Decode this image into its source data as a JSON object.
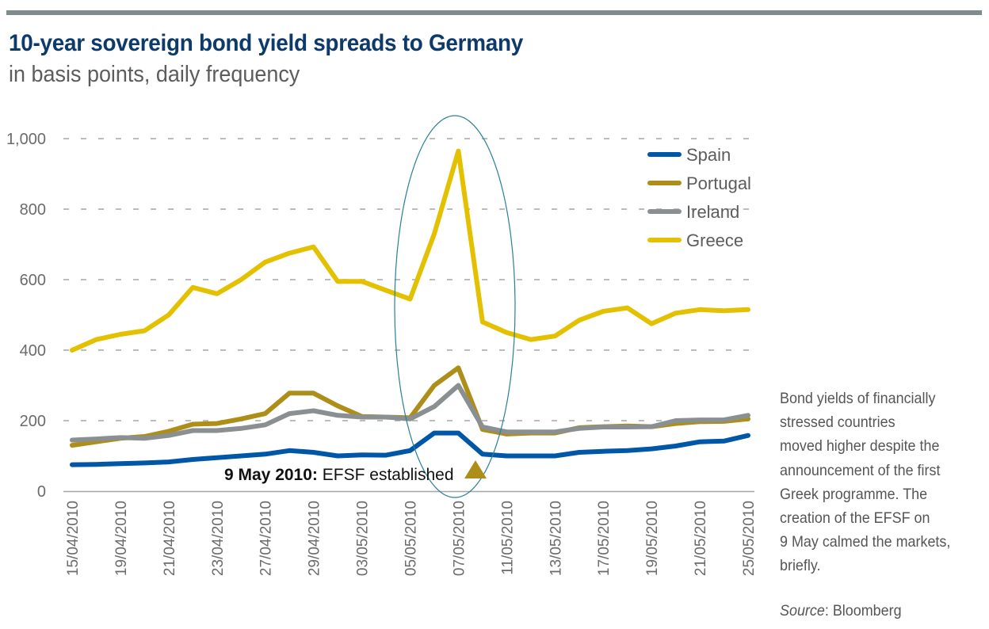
{
  "header": {
    "title": "10-year sovereign bond yield spreads to Germany",
    "subtitle": "in basis points, daily frequency"
  },
  "side_note": {
    "lines": [
      "Bond yields of financially",
      "stressed countries",
      "moved higher despite the",
      "announcement of the first",
      "Greek programme. The",
      "creation of the EFSF on",
      "9 May calmed the markets,",
      "briefly."
    ],
    "source_label": "Source",
    "source_value": ": Bloomberg"
  },
  "colors": {
    "title": "#0d3a6b",
    "Spain": "#0057a8",
    "Portugal": "#ad8e18",
    "Ireland": "#8a8f92",
    "Greece": "#e3c000",
    "ellipse": "#2a7f98",
    "grid": "#a6a6a6"
  },
  "chart_data": {
    "type": "line",
    "title": "10-year sovereign bond yield spreads to Germany",
    "subtitle": "in basis points, daily frequency",
    "xlabel": "",
    "ylabel": "",
    "ylim": [
      0,
      1000
    ],
    "yticks": [
      0,
      200,
      400,
      600,
      800,
      1000
    ],
    "ytick_labels": [
      "0",
      "200",
      "400",
      "600",
      "800",
      "1,000"
    ],
    "grid": "horizontal dashed",
    "legend_position": "top-right",
    "x": [
      "15/04/2010",
      "16/04/2010",
      "19/04/2010",
      "20/04/2010",
      "21/04/2010",
      "22/04/2010",
      "23/04/2010",
      "26/04/2010",
      "27/04/2010",
      "28/04/2010",
      "29/04/2010",
      "30/04/2010",
      "03/05/2010",
      "04/05/2010",
      "05/05/2010",
      "06/05/2010",
      "07/05/2010",
      "10/05/2010",
      "11/05/2010",
      "12/05/2010",
      "13/05/2010",
      "14/05/2010",
      "17/05/2010",
      "18/05/2010",
      "19/05/2010",
      "20/05/2010",
      "21/05/2010",
      "24/05/2010",
      "25/05/2010"
    ],
    "xtick_labels": [
      "15/04/2010",
      "19/04/2010",
      "21/04/2010",
      "23/04/2010",
      "27/04/2010",
      "29/04/2010",
      "03/05/2010",
      "05/05/2010",
      "07/05/2010",
      "11/05/2010",
      "13/05/2010",
      "17/05/2010",
      "19/05/2010",
      "21/05/2010",
      "25/05/2010"
    ],
    "series": [
      {
        "name": "Spain",
        "values": [
          75,
          76,
          78,
          80,
          83,
          90,
          95,
          100,
          105,
          115,
          110,
          100,
          103,
          102,
          115,
          165,
          165,
          105,
          100,
          100,
          100,
          110,
          113,
          115,
          120,
          128,
          140,
          142,
          158
        ]
      },
      {
        "name": "Portugal",
        "values": [
          130,
          140,
          150,
          155,
          170,
          190,
          192,
          205,
          220,
          278,
          278,
          242,
          212,
          210,
          208,
          300,
          350,
          175,
          162,
          165,
          165,
          180,
          183,
          185,
          183,
          192,
          197,
          198,
          205
        ]
      },
      {
        "name": "Ireland",
        "values": [
          145,
          148,
          152,
          150,
          158,
          172,
          172,
          178,
          188,
          220,
          228,
          215,
          210,
          210,
          205,
          240,
          300,
          182,
          168,
          168,
          168,
          178,
          182,
          182,
          183,
          200,
          202,
          202,
          215
        ]
      },
      {
        "name": "Greece",
        "values": [
          400,
          430,
          445,
          455,
          500,
          578,
          560,
          600,
          650,
          675,
          693,
          595,
          595,
          570,
          545,
          730,
          965,
          480,
          450,
          430,
          440,
          485,
          510,
          520,
          475,
          505,
          515,
          512,
          515
        ]
      }
    ],
    "annotation": {
      "bold": "9 May 2010:",
      "text": " EFSF established",
      "marker": "triangle-marker"
    }
  }
}
